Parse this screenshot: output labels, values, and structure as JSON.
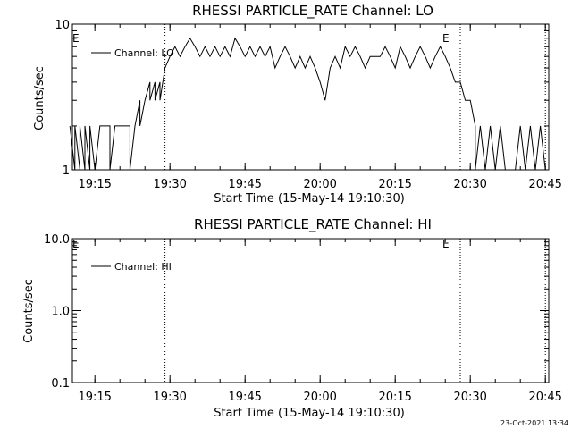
{
  "chart_data": [
    {
      "type": "line",
      "title": "RHESSI PARTICLE_RATE Channel: LO",
      "xlabel": "Start Time (15-May-14 19:10:30)",
      "ylabel": "Counts/sec",
      "y_scale": "log",
      "ylim": [
        1,
        10
      ],
      "y_ticks": [
        "1",
        "10"
      ],
      "x_ticks": [
        "19:15",
        "19:30",
        "19:45",
        "20:00",
        "20:15",
        "20:30",
        "20:45"
      ],
      "event_markers": [
        "E",
        "E"
      ],
      "event_lines": [
        "19:29",
        "20:28",
        "20:45"
      ],
      "legend": "top-left",
      "series": [
        {
          "name": "Channel: LO",
          "values": [
            [
              "19:10",
              2
            ],
            [
              "19:11",
              1
            ],
            [
              "19:11",
              2
            ],
            [
              "19:12",
              1
            ],
            [
              "19:12",
              2
            ],
            [
              "19:13",
              1
            ],
            [
              "19:13",
              2
            ],
            [
              "19:14",
              1
            ],
            [
              "19:14",
              2
            ],
            [
              "19:15",
              1
            ],
            [
              "19:16",
              2
            ],
            [
              "19:17",
              2
            ],
            [
              "19:18",
              2
            ],
            [
              "19:18",
              1
            ],
            [
              "19:19",
              2
            ],
            [
              "19:20",
              2
            ],
            [
              "19:21",
              2
            ],
            [
              "19:22",
              2
            ],
            [
              "19:22",
              1
            ],
            [
              "19:23",
              2
            ],
            [
              "19:24",
              3
            ],
            [
              "19:24",
              2
            ],
            [
              "19:25",
              3
            ],
            [
              "19:26",
              4
            ],
            [
              "19:26",
              3
            ],
            [
              "19:27",
              4
            ],
            [
              "19:27",
              3
            ],
            [
              "19:28",
              4
            ],
            [
              "19:28",
              3
            ],
            [
              "19:29",
              5
            ],
            [
              "19:30",
              6
            ],
            [
              "19:31",
              7
            ],
            [
              "19:32",
              6
            ],
            [
              "19:33",
              7
            ],
            [
              "19:34",
              8
            ],
            [
              "19:35",
              7
            ],
            [
              "19:36",
              6
            ],
            [
              "19:37",
              7
            ],
            [
              "19:38",
              6
            ],
            [
              "19:39",
              7
            ],
            [
              "19:40",
              6
            ],
            [
              "19:41",
              7
            ],
            [
              "19:42",
              6
            ],
            [
              "19:43",
              8
            ],
            [
              "19:44",
              7
            ],
            [
              "19:45",
              6
            ],
            [
              "19:46",
              7
            ],
            [
              "19:47",
              6
            ],
            [
              "19:48",
              7
            ],
            [
              "19:49",
              6
            ],
            [
              "19:50",
              7
            ],
            [
              "19:51",
              5
            ],
            [
              "19:52",
              6
            ],
            [
              "19:53",
              7
            ],
            [
              "19:54",
              6
            ],
            [
              "19:55",
              5
            ],
            [
              "19:56",
              6
            ],
            [
              "19:57",
              5
            ],
            [
              "19:58",
              6
            ],
            [
              "19:59",
              5
            ],
            [
              "20:00",
              4
            ],
            [
              "20:01",
              3
            ],
            [
              "20:02",
              5
            ],
            [
              "20:03",
              6
            ],
            [
              "20:04",
              5
            ],
            [
              "20:05",
              7
            ],
            [
              "20:06",
              6
            ],
            [
              "20:07",
              7
            ],
            [
              "20:08",
              6
            ],
            [
              "20:09",
              5
            ],
            [
              "20:10",
              6
            ],
            [
              "20:11",
              6
            ],
            [
              "20:12",
              6
            ],
            [
              "20:13",
              7
            ],
            [
              "20:14",
              6
            ],
            [
              "20:15",
              5
            ],
            [
              "20:16",
              7
            ],
            [
              "20:17",
              6
            ],
            [
              "20:18",
              5
            ],
            [
              "20:19",
              6
            ],
            [
              "20:20",
              7
            ],
            [
              "20:21",
              6
            ],
            [
              "20:22",
              5
            ],
            [
              "20:23",
              6
            ],
            [
              "20:24",
              7
            ],
            [
              "20:25",
              6
            ],
            [
              "20:26",
              5
            ],
            [
              "20:27",
              4
            ],
            [
              "20:28",
              4
            ],
            [
              "20:29",
              3
            ],
            [
              "20:30",
              3
            ],
            [
              "20:31",
              2
            ],
            [
              "20:31",
              1
            ],
            [
              "20:32",
              2
            ],
            [
              "20:33",
              1
            ],
            [
              "20:34",
              2
            ],
            [
              "20:35",
              1
            ],
            [
              "20:36",
              2
            ],
            [
              "20:37",
              1
            ],
            [
              "20:38",
              1
            ],
            [
              "20:39",
              1
            ],
            [
              "20:40",
              2
            ],
            [
              "20:41",
              1
            ],
            [
              "20:42",
              2
            ],
            [
              "20:43",
              1
            ],
            [
              "20:44",
              2
            ],
            [
              "20:45",
              1
            ]
          ]
        }
      ]
    },
    {
      "type": "line",
      "title": "RHESSI PARTICLE_RATE Channel: HI",
      "xlabel": "Start Time (15-May-14 19:10:30)",
      "ylabel": "Counts/sec",
      "y_scale": "log",
      "ylim": [
        0.1,
        10
      ],
      "y_ticks": [
        "0.1",
        "1.0",
        "10.0"
      ],
      "x_ticks": [
        "19:15",
        "19:30",
        "19:45",
        "20:00",
        "20:15",
        "20:30",
        "20:45"
      ],
      "event_markers": [
        "E",
        "E"
      ],
      "event_lines": [
        "19:29",
        "20:28",
        "20:45"
      ],
      "legend": "top-left",
      "series": [
        {
          "name": "Channel: HI",
          "values": []
        }
      ]
    }
  ],
  "footer": {
    "timestamp": "23-Oct-2021 13:34"
  }
}
